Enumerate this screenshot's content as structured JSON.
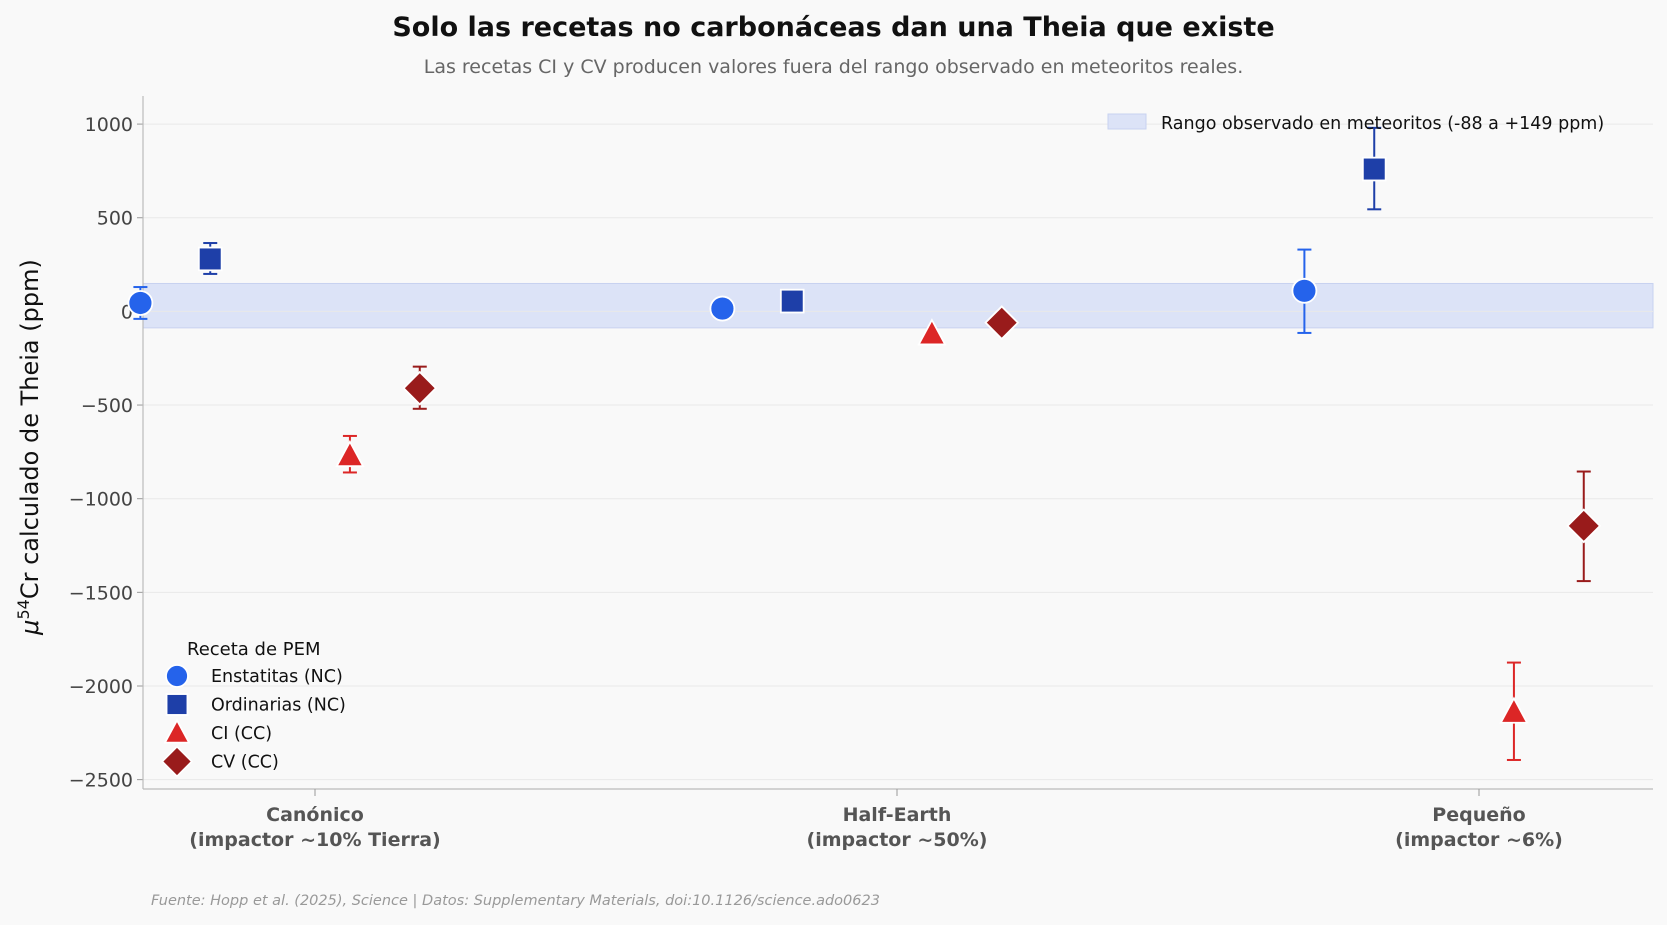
{
  "title": "Solo las recetas no carbonáceas dan una Theia que existe",
  "subtitle": "Las recetas CI y CV producen valores fuera del rango observado en meteoritos reales.",
  "source": "Fuente: Hopp et al. (2025), Science | Datos: Supplementary Materials, doi:10.1126/science.ado0623",
  "chart_data": {
    "type": "scatter",
    "title": "Solo las recetas no carbonáceas dan una Theia que existe",
    "subtitle": "Las recetas CI y CV producen valores fuera del rango observado en meteoritos reales.",
    "xlabel": "",
    "ylabel_prefix": "μ",
    "ylabel_sup": "54",
    "ylabel_suffix": "Cr calculado de Theia (ppm)",
    "ylim": [
      -2550,
      1150
    ],
    "yticks": [
      1000,
      500,
      0,
      -500,
      -1000,
      -1500,
      -2000,
      -2500
    ],
    "ytick_labels": [
      "1000",
      "500",
      "0",
      "−500",
      "−1000",
      "−1500",
      "−2000",
      "−2500"
    ],
    "grid": true,
    "categories": [
      {
        "line1": "Canónico",
        "line2": "(impactor ~10% Tierra)"
      },
      {
        "line1": "Half-Earth",
        "line2": "(impactor ~50%)"
      },
      {
        "line1": "Pequeño",
        "line2": "(impactor ~6%)"
      }
    ],
    "observed_range": {
      "low": -88,
      "high": 149,
      "label": "Rango observado en meteoritos (-88 a +149 ppm)",
      "color": "#dce3f7"
    },
    "legend_title": "Receta de PEM",
    "legend_position": "lower-left",
    "series": [
      {
        "name": "Enstatitas (NC)",
        "marker": "circle",
        "color": "#2563eb",
        "offset": -0.3,
        "values": [
          45,
          15,
          110
        ],
        "err_low": [
          -40,
          null,
          -115
        ],
        "err_high": [
          130,
          null,
          330
        ]
      },
      {
        "name": "Ordinarias (NC)",
        "marker": "square",
        "color": "#1e3fa8",
        "offset": -0.18,
        "values": [
          280,
          55,
          760
        ],
        "err_low": [
          200,
          null,
          545
        ],
        "err_high": [
          365,
          null,
          980
        ]
      },
      {
        "name": "CI (CC)",
        "marker": "triangle",
        "color": "#dc2626",
        "offset": 0.06,
        "values": [
          -770,
          -120,
          -2140
        ],
        "err_low": [
          -860,
          null,
          -2395
        ],
        "err_high": [
          -665,
          null,
          -1875
        ]
      },
      {
        "name": "CV (CC)",
        "marker": "diamond",
        "color": "#991b1b",
        "offset": 0.18,
        "values": [
          -410,
          -60,
          -1145
        ],
        "err_low": [
          -520,
          null,
          -1440
        ],
        "err_high": [
          -295,
          null,
          -855
        ]
      }
    ]
  }
}
